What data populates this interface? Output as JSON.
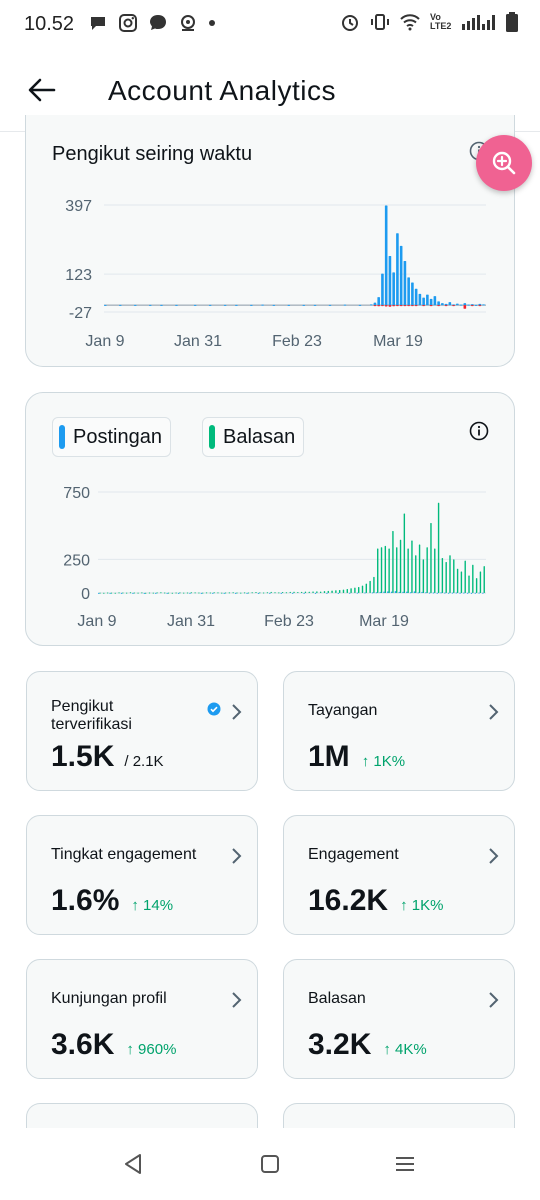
{
  "status_bar": {
    "time": "10.52",
    "carrier_badge": "Vo LTE2",
    "icons": [
      "chat-bubble-icon",
      "instagram-icon",
      "message-icon",
      "location-icon",
      "dot-icon",
      "alarm-icon",
      "vibrate-icon",
      "wifi-icon",
      "signal-icon",
      "battery-icon"
    ]
  },
  "header": {
    "title": "Account Analytics",
    "back_icon": "arrow-left-icon"
  },
  "followers_chart": {
    "title": "Pengikut seiring waktu",
    "info_icon": "info-icon",
    "zoom_icon": "zoom-in-icon",
    "colors": {
      "positive": "#1d9bf0",
      "negative": "#f4212e",
      "baseline": "#8899a6"
    }
  },
  "posts_chart": {
    "legend": [
      {
        "label": "Postingan",
        "color": "#1d9bf0"
      },
      {
        "label": "Balasan",
        "color": "#00ba7c"
      }
    ],
    "info_icon": "info-icon"
  },
  "chart_data": [
    {
      "type": "bar",
      "title": "Pengikut seiring waktu",
      "x_ticks": [
        "Jan 9",
        "Jan 31",
        "Feb 23",
        "Mar 19"
      ],
      "y_ticks": [
        397,
        123,
        -27
      ],
      "ylim": [
        -27,
        397
      ],
      "grid": true,
      "series": [
        {
          "values": [
            1,
            0,
            0,
            0,
            1,
            0,
            0,
            0,
            1,
            0,
            0,
            0,
            1,
            0,
            0,
            1,
            0,
            0,
            0,
            1,
            0,
            0,
            0,
            0,
            1,
            0,
            0,
            0,
            1,
            0,
            0,
            0,
            1,
            0,
            0,
            1,
            0,
            0,
            0,
            1,
            0,
            0,
            2,
            0,
            0,
            1,
            0,
            0,
            0,
            1,
            0,
            0,
            0,
            1,
            0,
            0,
            1,
            0,
            0,
            0,
            1,
            0,
            0,
            0,
            2,
            0,
            0,
            0,
            1,
            0,
            0,
            3,
            10,
            32,
            125,
            395,
            195,
            130,
            285,
            235,
            175,
            110,
            90,
            65,
            45,
            30,
            42,
            25,
            36,
            15,
            8,
            5,
            12,
            3,
            6,
            2,
            8,
            2,
            4,
            1,
            5,
            3
          ]
        },
        {
          "values": [
            0,
            0,
            0,
            0,
            0,
            0,
            0,
            0,
            0,
            0,
            0,
            0,
            0,
            0,
            0,
            0,
            0,
            0,
            0,
            0,
            0,
            0,
            0,
            0,
            0,
            0,
            0,
            0,
            0,
            0,
            0,
            0,
            0,
            0,
            0,
            0,
            0,
            0,
            0,
            0,
            0,
            0,
            0,
            0,
            0,
            0,
            0,
            0,
            0,
            0,
            0,
            0,
            0,
            0,
            0,
            0,
            0,
            0,
            0,
            0,
            0,
            0,
            0,
            0,
            0,
            0,
            0,
            0,
            0,
            0,
            0,
            0,
            -2,
            -4,
            -3,
            -5,
            -6,
            -4,
            -3,
            -2,
            -2,
            -1,
            -2,
            -1,
            0,
            -1,
            0,
            -1,
            0,
            -2,
            0,
            -1,
            0,
            -1,
            0,
            0,
            -14,
            0,
            -2,
            0,
            -1,
            0
          ]
        }
      ]
    },
    {
      "type": "bar",
      "x_ticks": [
        "Jan 9",
        "Jan 31",
        "Feb 23",
        "Mar 19"
      ],
      "y_ticks": [
        750,
        250,
        0
      ],
      "ylim": [
        0,
        750
      ],
      "grid": true,
      "series": [
        {
          "name": "Postingan",
          "values": [
            1,
            0,
            0,
            1,
            0,
            0,
            1,
            0,
            0,
            1,
            0,
            0,
            1,
            0,
            0,
            1,
            0,
            0,
            1,
            0,
            0,
            1,
            0,
            0,
            1,
            0,
            0,
            1,
            0,
            0,
            1,
            0,
            0,
            1,
            0,
            0,
            1,
            0,
            0,
            1,
            0,
            0,
            1,
            0,
            0,
            1,
            0,
            0,
            1,
            0,
            0,
            1,
            0,
            0,
            1,
            0,
            0,
            1,
            0,
            0,
            1,
            0,
            0,
            1,
            0,
            0,
            2,
            0,
            3,
            0,
            4,
            0,
            5,
            6,
            8,
            10,
            12,
            10,
            14,
            8,
            9,
            10,
            6,
            12,
            5,
            8,
            6,
            3,
            4,
            2,
            5,
            3,
            2,
            3,
            4,
            2,
            3,
            2,
            1,
            2,
            3,
            2
          ]
        },
        {
          "name": "Balasan",
          "values": [
            3,
            2,
            4,
            3,
            2,
            5,
            4,
            3,
            6,
            4,
            3,
            5,
            2,
            4,
            3,
            5,
            6,
            4,
            3,
            2,
            4,
            5,
            3,
            4,
            6,
            5,
            4,
            3,
            5,
            4,
            6,
            5,
            3,
            4,
            5,
            6,
            4,
            3,
            5,
            4,
            6,
            7,
            5,
            4,
            6,
            8,
            6,
            5,
            7,
            6,
            8,
            9,
            7,
            8,
            10,
            9,
            11,
            12,
            10,
            14,
            16,
            18,
            20,
            22,
            25,
            30,
            35,
            40,
            45,
            55,
            70,
            90,
            120,
            330,
            340,
            350,
            330,
            460,
            340,
            395,
            590,
            330,
            390,
            280,
            360,
            250,
            340,
            520,
            330,
            670,
            260,
            230,
            280,
            250,
            180,
            160,
            240,
            130,
            210,
            110,
            160,
            200
          ]
        }
      ]
    }
  ],
  "metrics": [
    {
      "label": "Pengikut terverifikasi",
      "value": "1.5K",
      "secondary": "/ 2.1K",
      "delta": "",
      "badge_icon": "verified-badge-icon"
    },
    {
      "label": "Tayangan",
      "value": "1M",
      "secondary": "",
      "delta": "↑ 1K%"
    },
    {
      "label": "Tingkat engagement",
      "value": "1.6%",
      "secondary": "",
      "delta": "↑ 14%"
    },
    {
      "label": "Engagement",
      "value": "16.2K",
      "secondary": "",
      "delta": "↑ 1K%"
    },
    {
      "label": "Kunjungan profil",
      "value": "3.6K",
      "secondary": "",
      "delta": "↑ 960%"
    },
    {
      "label": "Balasan",
      "value": "3.2K",
      "secondary": "",
      "delta": "↑ 4K%"
    }
  ],
  "nav_bar": {
    "icons": [
      "back-triangle-icon",
      "home-square-icon",
      "recents-lines-icon"
    ]
  }
}
